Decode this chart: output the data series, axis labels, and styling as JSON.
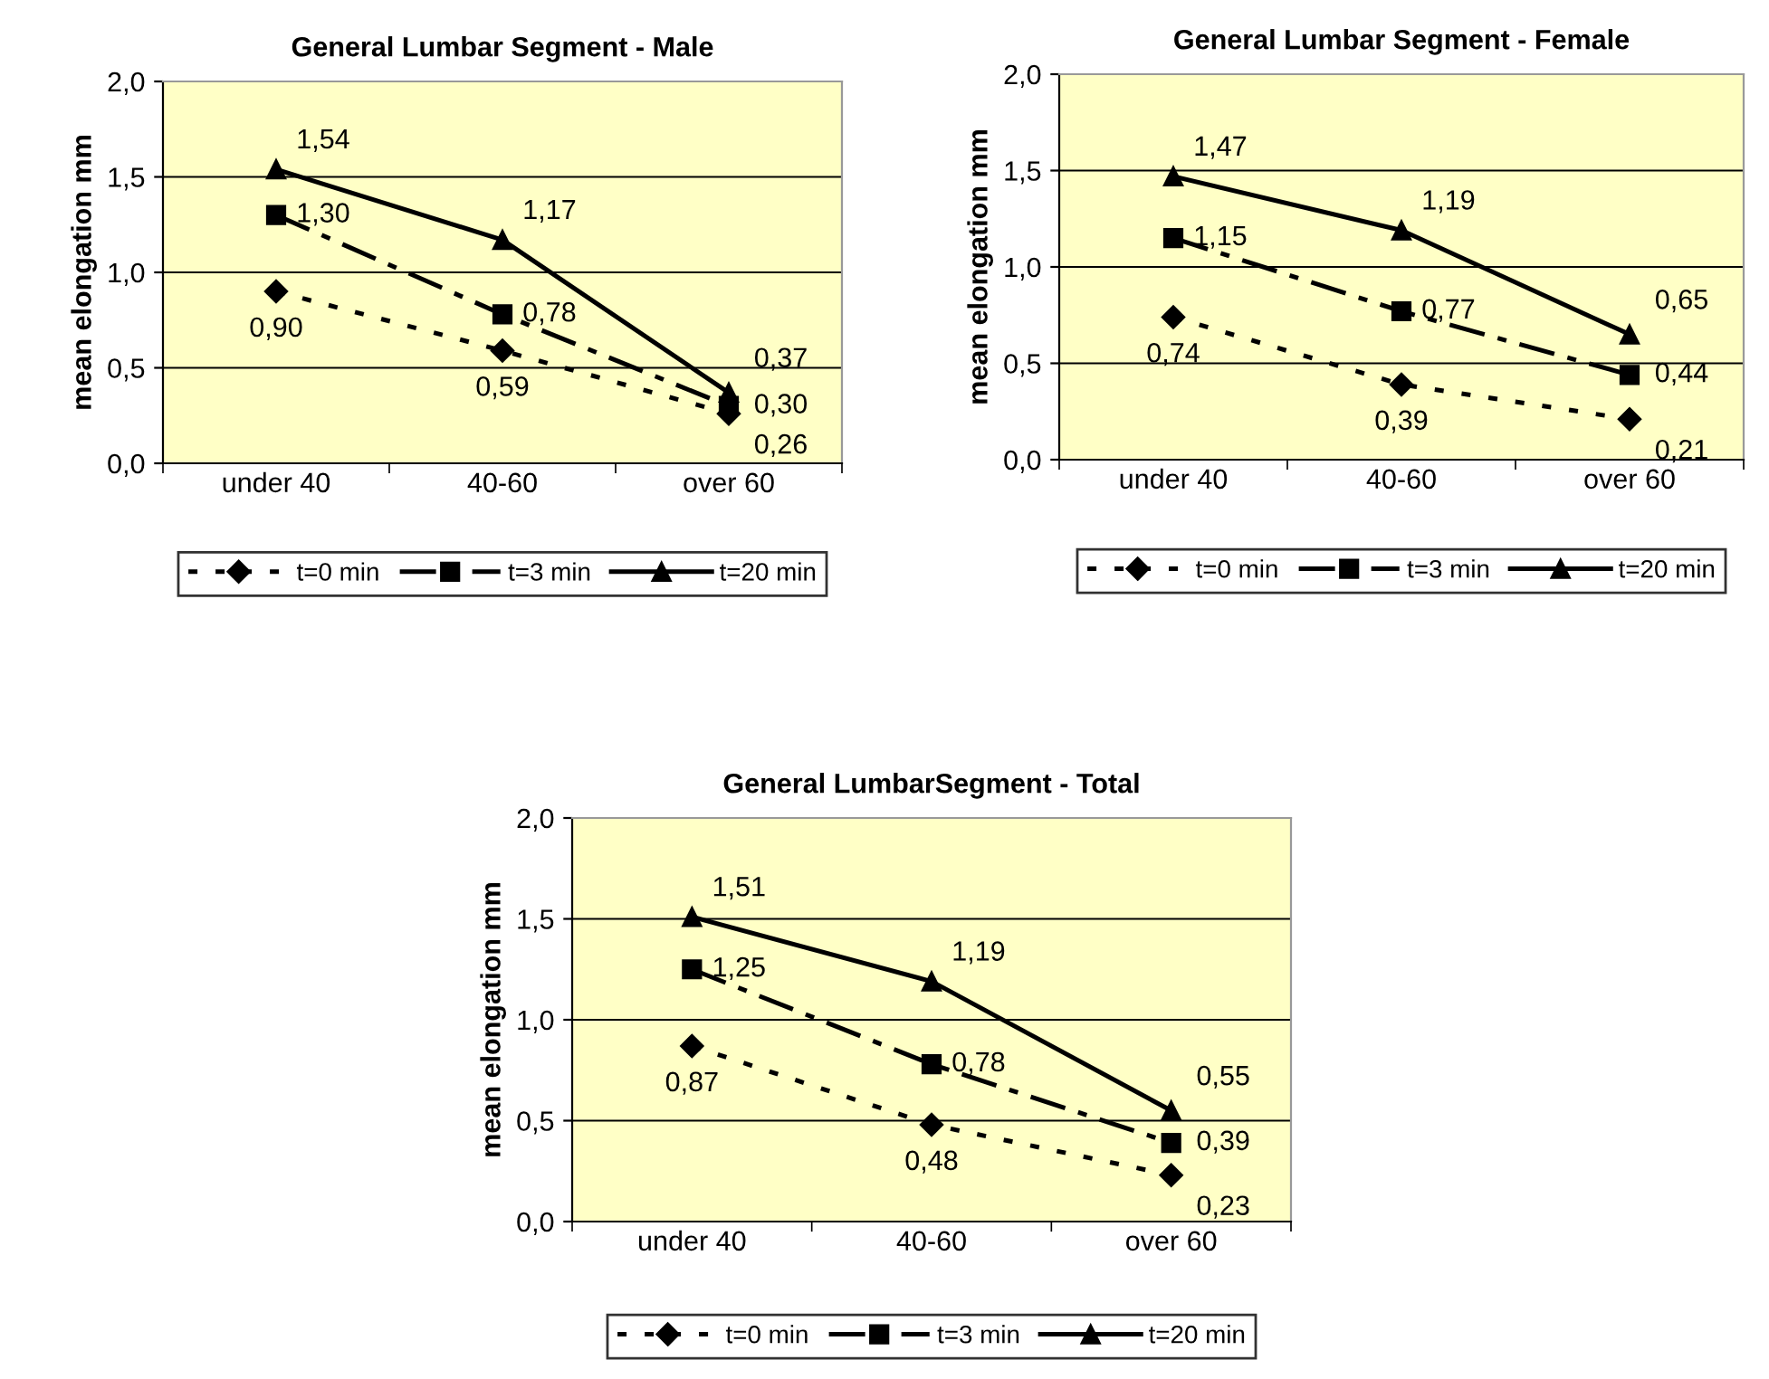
{
  "chart_data": [
    {
      "type": "line",
      "title": "General Lumbar Segment - Male",
      "ylabel": "mean elongation mm",
      "categories": [
        "under 40",
        "40-60",
        "over 60"
      ],
      "ylim": [
        0,
        2
      ],
      "yticks": [
        {
          "value": 0,
          "label": "0,0"
        },
        {
          "value": 0.5,
          "label": "0,5"
        },
        {
          "value": 1,
          "label": "1,0"
        },
        {
          "value": 1.5,
          "label": "1,5"
        },
        {
          "value": 2,
          "label": "2,0"
        }
      ],
      "grid": "y",
      "legend": "bottom",
      "series": [
        {
          "name": "t=0 min",
          "color": "#000000",
          "marker": "diamond",
          "line_style": "dotted",
          "values": [
            0.9,
            0.59,
            0.26
          ],
          "value_labels": [
            "0,90",
            "0,59",
            "0,26"
          ]
        },
        {
          "name": "t=3 min",
          "color": "#000000",
          "marker": "square",
          "line_style": "dashed",
          "values": [
            1.3,
            0.78,
            0.3
          ],
          "value_labels": [
            "1,30",
            "0,78",
            "0,30"
          ]
        },
        {
          "name": "t=20 min",
          "color": "#000000",
          "marker": "triangle",
          "line_style": "solid",
          "values": [
            1.54,
            1.17,
            0.37
          ],
          "value_labels": [
            "1,54",
            "1,17",
            "0,37"
          ]
        }
      ]
    },
    {
      "type": "line",
      "title": "General Lumbar Segment - Female",
      "ylabel": "mean elongation mm",
      "categories": [
        "under 40",
        "40-60",
        "over 60"
      ],
      "ylim": [
        0,
        2
      ],
      "yticks": [
        {
          "value": 0,
          "label": "0,0"
        },
        {
          "value": 0.5,
          "label": "0,5"
        },
        {
          "value": 1,
          "label": "1,0"
        },
        {
          "value": 1.5,
          "label": "1,5"
        },
        {
          "value": 2,
          "label": "2,0"
        }
      ],
      "grid": "y",
      "legend": "bottom",
      "series": [
        {
          "name": "t=0 min",
          "color": "#000000",
          "marker": "diamond",
          "line_style": "dotted",
          "values": [
            0.74,
            0.39,
            0.21
          ],
          "value_labels": [
            "0,74",
            "0,39",
            "0,21"
          ]
        },
        {
          "name": "t=3 min",
          "color": "#000000",
          "marker": "square",
          "line_style": "dashed",
          "values": [
            1.15,
            0.77,
            0.44
          ],
          "value_labels": [
            "1,15",
            "0,77",
            "0,44"
          ]
        },
        {
          "name": "t=20 min",
          "color": "#000000",
          "marker": "triangle",
          "line_style": "solid",
          "values": [
            1.47,
            1.19,
            0.65
          ],
          "value_labels": [
            "1,47",
            "1,19",
            "0,65"
          ]
        }
      ]
    },
    {
      "type": "line",
      "title": "General LumbarSegment - Total",
      "ylabel": "mean elongation mm",
      "categories": [
        "under 40",
        "40-60",
        "over 60"
      ],
      "ylim": [
        0,
        2
      ],
      "yticks": [
        {
          "value": 0,
          "label": "0,0"
        },
        {
          "value": 0.5,
          "label": "0,5"
        },
        {
          "value": 1,
          "label": "1,0"
        },
        {
          "value": 1.5,
          "label": "1,5"
        },
        {
          "value": 2,
          "label": "2,0"
        }
      ],
      "grid": "y",
      "legend": "bottom",
      "series": [
        {
          "name": "t=0 min",
          "color": "#000000",
          "marker": "diamond",
          "line_style": "dotted",
          "values": [
            0.87,
            0.48,
            0.23
          ],
          "value_labels": [
            "0,87",
            "0,48",
            "0,23"
          ]
        },
        {
          "name": "t=3 min",
          "color": "#000000",
          "marker": "square",
          "line_style": "dashed",
          "values": [
            1.25,
            0.78,
            0.39
          ],
          "value_labels": [
            "1,25",
            "0,78",
            "0,39"
          ]
        },
        {
          "name": "t=20 min",
          "color": "#000000",
          "marker": "triangle",
          "line_style": "solid",
          "values": [
            1.51,
            1.19,
            0.55
          ],
          "value_labels": [
            "1,51",
            "1,19",
            "0,55"
          ]
        }
      ]
    }
  ]
}
